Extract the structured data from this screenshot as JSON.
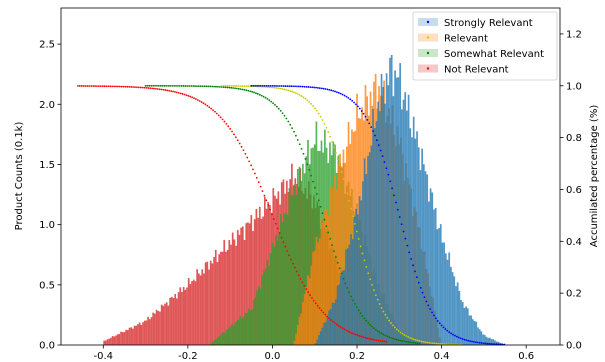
{
  "chart_data": {
    "type": "bar",
    "title": "",
    "xlabel": "",
    "ylabel": "Product Counts (0.1k)",
    "y2label": "Accumilated percentage (%)",
    "xlim": [
      -0.5,
      0.68
    ],
    "ylim": [
      0,
      2.8
    ],
    "y2lim": [
      0,
      1.3
    ],
    "xticks": [
      "-0.4",
      "-0.2",
      "0.0",
      "0.2",
      "0.4",
      "0.6"
    ],
    "xtick_values": [
      -0.4,
      -0.2,
      0.0,
      0.2,
      0.4,
      0.6
    ],
    "yticks": [
      "0.0",
      "0.5",
      "1.0",
      "1.5",
      "2.0",
      "2.5"
    ],
    "ytick_values": [
      0,
      0.5,
      1.0,
      1.5,
      2.0,
      2.5
    ],
    "y2ticks": [
      "0.0",
      "0.2",
      "0.4",
      "0.6",
      "0.8",
      "1.0",
      "1.2"
    ],
    "y2tick_values": [
      0,
      0.2,
      0.4,
      0.6,
      0.8,
      1.0,
      1.2
    ],
    "grid": false,
    "legend_position": "top-right",
    "bin_width": 0.004,
    "series": [
      {
        "name": "Not Relevant",
        "hist_color": "#d62728",
        "curve_color": "#ff0000",
        "hist_shape": {
          "x": [
            -0.4,
            -0.3,
            -0.2,
            -0.1,
            0.0,
            0.05,
            0.1,
            0.15,
            0.2,
            0.25,
            0.3,
            0.35
          ],
          "y": [
            0.03,
            0.2,
            0.5,
            0.85,
            1.2,
            1.4,
            1.2,
            0.7,
            0.3,
            0.1,
            0.02,
            0.0
          ]
        },
        "curve_range": [
          -0.46,
          0.27
        ],
        "curve_mid": 0.0,
        "curve_scale": 0.062
      },
      {
        "name": "Somewhat Relevant",
        "hist_color": "#2ca02c",
        "curve_color": "#008000",
        "hist_shape": {
          "x": [
            -0.15,
            -0.05,
            0.0,
            0.05,
            0.1,
            0.15,
            0.2,
            0.25,
            0.3,
            0.35
          ],
          "y": [
            0.0,
            0.3,
            0.8,
            1.3,
            1.7,
            1.6,
            1.1,
            0.5,
            0.12,
            0.0
          ]
        },
        "curve_range": [
          -0.3,
          0.35
        ],
        "curve_mid": 0.12,
        "curve_scale": 0.045
      },
      {
        "name": "Relevant",
        "hist_color": "#ff7f0e",
        "curve_color": "#cccc00",
        "hist_shape": {
          "x": [
            0.05,
            0.1,
            0.15,
            0.2,
            0.25,
            0.3,
            0.35,
            0.4
          ],
          "y": [
            0.0,
            0.8,
            1.4,
            1.9,
            2.15,
            1.7,
            0.9,
            0.0
          ]
        },
        "curve_range": [
          -0.12,
          0.45
        ],
        "curve_mid": 0.19,
        "curve_scale": 0.038
      },
      {
        "name": "Strongly Relevant",
        "hist_color": "#1f77b4",
        "curve_color": "#0000ff",
        "hist_shape": {
          "x": [
            0.1,
            0.15,
            0.2,
            0.25,
            0.28,
            0.3,
            0.35,
            0.4,
            0.45,
            0.5,
            0.55
          ],
          "y": [
            0.0,
            0.4,
            1.1,
            2.0,
            2.3,
            2.2,
            1.6,
            0.9,
            0.35,
            0.08,
            0.0
          ]
        },
        "curve_range": [
          -0.05,
          0.55
        ],
        "curve_mid": 0.3,
        "curve_scale": 0.04
      }
    ],
    "legend_order": [
      "Strongly Relevant",
      "Relevant",
      "Somewhat Relevant",
      "Not Relevant"
    ]
  }
}
